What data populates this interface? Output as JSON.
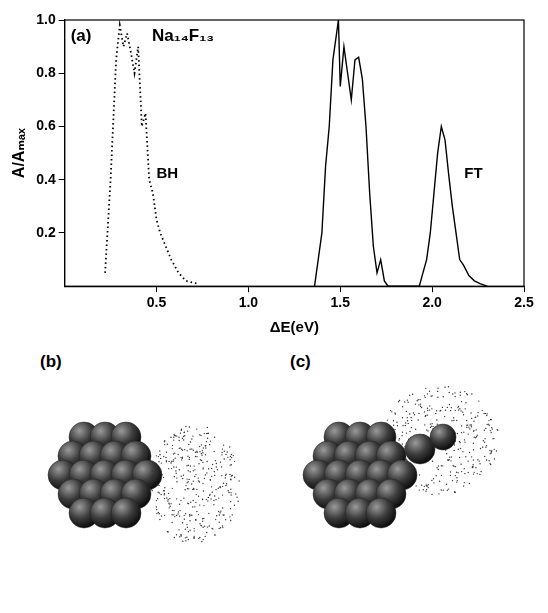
{
  "chart_data": {
    "type": "line",
    "annotations": [
      "(a)",
      "Na₁₄F₁₃"
    ],
    "x_label": "ΔE(eV)",
    "y_label": "A/Aₘₐₓ",
    "xlim": [
      0,
      2.5
    ],
    "xticks": [
      0.5,
      {
        "value": 1,
        "label": "1.0"
      },
      1.5,
      {
        "value": 2,
        "label": "2.0"
      },
      2.5
    ],
    "ylim": [
      0,
      1
    ],
    "yticks": [
      0.2,
      0.4,
      0.6,
      0.8,
      {
        "value": 1,
        "label": "1.0"
      }
    ],
    "grid": false,
    "series": [
      {
        "name": "BH",
        "color": "#000000",
        "line_style": "dotted",
        "x": [
          0.22,
          0.25,
          0.28,
          0.3,
          0.32,
          0.34,
          0.36,
          0.38,
          0.4,
          0.42,
          0.44,
          0.46,
          0.48,
          0.5,
          0.52,
          0.55,
          0.58,
          0.62,
          0.66,
          0.72
        ],
        "values": [
          0.05,
          0.4,
          0.85,
          0.98,
          0.9,
          0.95,
          0.88,
          0.8,
          0.9,
          0.6,
          0.65,
          0.4,
          0.35,
          0.25,
          0.2,
          0.15,
          0.1,
          0.05,
          0.02,
          0.01
        ]
      },
      {
        "name": "FT",
        "color": "#000000",
        "line_style": "solid",
        "x": [
          1.36,
          1.38,
          1.4,
          1.42,
          1.44,
          1.46,
          1.48,
          1.49,
          1.5,
          1.52,
          1.54,
          1.56,
          1.58,
          1.6,
          1.62,
          1.64,
          1.66,
          1.68,
          1.7,
          1.72,
          1.74,
          1.76,
          1.93,
          1.95,
          1.97,
          1.99,
          2.01,
          2.03,
          2.05,
          2.07,
          2.09,
          2.11,
          2.13,
          2.15,
          2.17,
          2.2,
          2.23,
          2.26,
          2.3
        ],
        "values": [
          0,
          0.1,
          0.2,
          0.45,
          0.6,
          0.85,
          0.95,
          1.0,
          0.75,
          0.9,
          0.8,
          0.7,
          0.85,
          0.86,
          0.78,
          0.6,
          0.35,
          0.15,
          0.05,
          0.1,
          0.02,
          0,
          0,
          0.05,
          0.1,
          0.2,
          0.35,
          0.5,
          0.6,
          0.55,
          0.42,
          0.3,
          0.2,
          0.1,
          0.08,
          0.04,
          0.02,
          0.01,
          0
        ]
      }
    ]
  },
  "panels": [
    {
      "label": "(b)"
    },
    {
      "label": "(c)"
    }
  ]
}
